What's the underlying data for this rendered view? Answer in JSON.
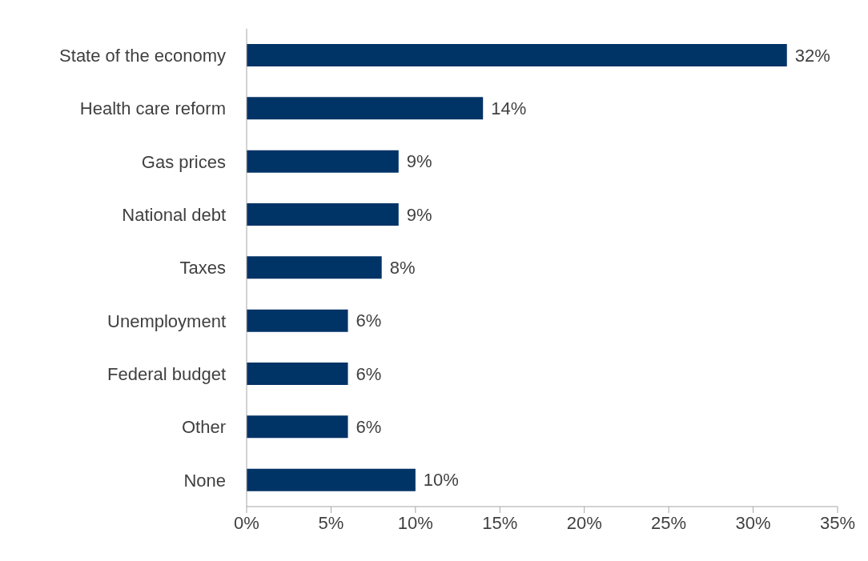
{
  "chart_data": {
    "type": "bar",
    "orientation": "horizontal",
    "categories": [
      "State of the economy",
      "Health care reform",
      "Gas prices",
      "National debt",
      "Taxes",
      "Unemployment",
      "Federal budget",
      "Other",
      "None"
    ],
    "values": [
      32,
      14,
      9,
      9,
      8,
      6,
      6,
      6,
      10
    ],
    "value_labels": [
      "32%",
      "14%",
      "9%",
      "9%",
      "8%",
      "6%",
      "6%",
      "6%",
      "10%"
    ],
    "color": "#003366",
    "xlim": [
      0,
      35
    ],
    "xticks": [
      {
        "value": 0,
        "label": "0%"
      },
      {
        "value": 5,
        "label": "5%"
      },
      {
        "value": 10,
        "label": "10%"
      },
      {
        "value": 15,
        "label": "15%"
      },
      {
        "value": 20,
        "label": "20%"
      },
      {
        "value": 25,
        "label": "25%"
      },
      {
        "value": 30,
        "label": "30%"
      },
      {
        "value": 35,
        "label": "35%"
      }
    ],
    "grid": false,
    "legend": false
  }
}
